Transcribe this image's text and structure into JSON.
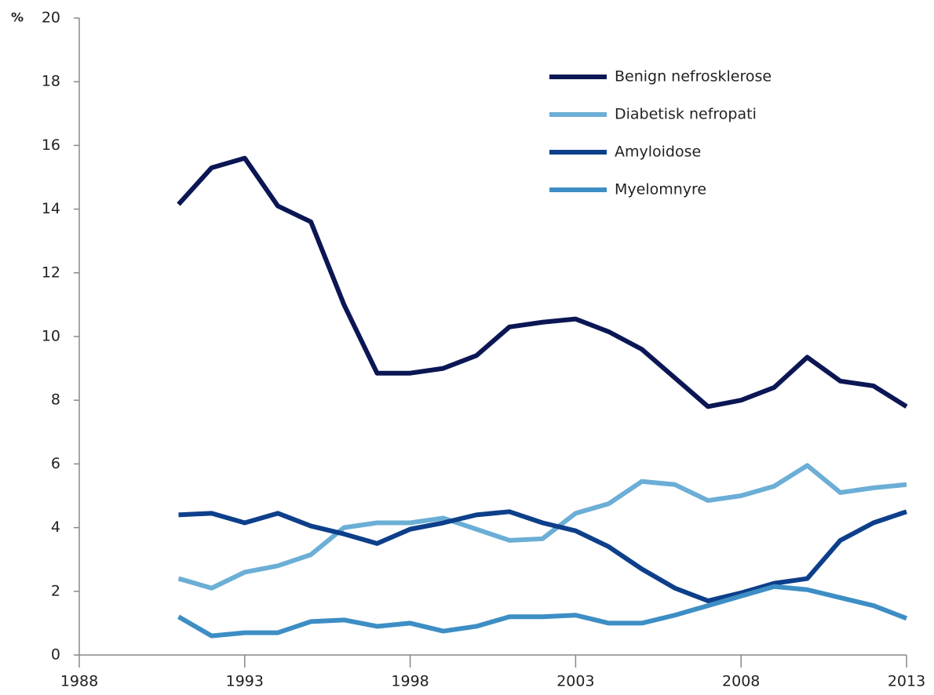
{
  "chart_data": {
    "type": "line",
    "ylabel": "%",
    "x": [
      1991,
      1992,
      1993,
      1994,
      1995,
      1996,
      1997,
      1998,
      1999,
      2000,
      2001,
      2002,
      2003,
      2004,
      2005,
      2006,
      2007,
      2008,
      2009,
      2010,
      2011,
      2012,
      2013
    ],
    "series": [
      {
        "name": "Benign nefrosklerose",
        "color": "#0b1654",
        "values": [
          14.15,
          15.3,
          15.6,
          14.1,
          13.6,
          11.0,
          8.85,
          8.85,
          9.0,
          9.4,
          10.3,
          10.45,
          10.55,
          10.15,
          9.6,
          8.7,
          7.8,
          8.0,
          8.4,
          9.35,
          8.6,
          8.45,
          7.8
        ]
      },
      {
        "name": "Diabetisk nefropati",
        "color": "#6baed6",
        "values": [
          2.4,
          2.1,
          2.6,
          2.8,
          3.15,
          4.0,
          4.15,
          4.15,
          4.3,
          3.95,
          3.6,
          3.65,
          4.45,
          4.75,
          5.45,
          5.35,
          4.85,
          5.0,
          5.3,
          5.95,
          5.1,
          5.25,
          5.35
        ]
      },
      {
        "name": "Amyloidose",
        "color": "#0d3f8a",
        "values": [
          4.4,
          4.45,
          4.15,
          4.45,
          4.05,
          3.8,
          3.5,
          3.95,
          4.15,
          4.4,
          4.5,
          4.15,
          3.9,
          3.4,
          2.7,
          2.1,
          1.7,
          1.95,
          2.25,
          2.4,
          3.6,
          4.15,
          4.5
        ]
      },
      {
        "name": "Myelomnyre",
        "color": "#3d8ec4",
        "values": [
          1.2,
          0.6,
          0.7,
          0.7,
          1.05,
          1.1,
          0.9,
          1.0,
          0.75,
          0.9,
          1.2,
          1.2,
          1.25,
          1.0,
          1.0,
          1.25,
          1.55,
          1.85,
          2.15,
          2.05,
          1.8,
          1.55,
          1.15
        ]
      }
    ],
    "xlim": [
      1988,
      2013
    ],
    "xticks": [
      1988,
      1993,
      1998,
      2003,
      2008,
      2013
    ],
    "ylim": [
      0,
      20
    ],
    "yticks": [
      0,
      2,
      4,
      6,
      8,
      10,
      12,
      14,
      16,
      18,
      20
    ],
    "legend": "upper right"
  }
}
